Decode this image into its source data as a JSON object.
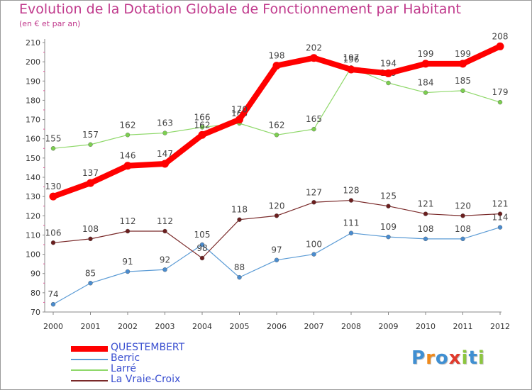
{
  "title": "Evolution de la Dotation Globale de Fonctionnement par Habitant",
  "subtitle": "(en € et par an)",
  "logo": {
    "text": "Proxiti",
    "letters": [
      {
        "ch": "P",
        "color": "#3f8fd2"
      },
      {
        "ch": "r",
        "color": "#f08a1c"
      },
      {
        "ch": "o",
        "color": "#3f8fd2"
      },
      {
        "ch": "x",
        "color": "#e03a2c"
      },
      {
        "ch": "i",
        "color": "#8cc63f"
      },
      {
        "ch": "t",
        "color": "#3f8fd2"
      },
      {
        "ch": "i",
        "color": "#8cc63f"
      }
    ]
  },
  "chart_data": {
    "type": "line",
    "x": [
      2000,
      2001,
      2002,
      2003,
      2004,
      2005,
      2006,
      2007,
      2008,
      2009,
      2010,
      2011,
      2012
    ],
    "ylim": [
      70,
      210
    ],
    "yticks": [
      70,
      80,
      90,
      100,
      110,
      120,
      130,
      140,
      150,
      160,
      170,
      180,
      190,
      200,
      210
    ],
    "grid": false,
    "legend": "bottom-left",
    "series": [
      {
        "name": "Berric",
        "color": "#5b9bd5",
        "marker": "#4a8ccf",
        "values": [
          74,
          85,
          91,
          92,
          105,
          88,
          97,
          100,
          111,
          109,
          108,
          108,
          114
        ],
        "width": 1.2
      },
      {
        "name": "La Vraie-Croix",
        "color": "#7a2a2a",
        "marker": "#6b1e1e",
        "values": [
          106,
          108,
          112,
          112,
          98,
          118,
          120,
          127,
          128,
          125,
          121,
          120,
          121
        ],
        "width": 1.2
      },
      {
        "name": "Larré",
        "color": "#8fd86a",
        "marker": "#7ccf4f",
        "values": [
          155,
          157,
          162,
          163,
          166,
          168,
          162,
          165,
          197,
          189,
          184,
          185,
          179
        ],
        "width": 1.2
      },
      {
        "name": "QUESTEMBERT",
        "color": "#ff0000",
        "marker": "#ff0000",
        "values": [
          130,
          137,
          146,
          147,
          162,
          170,
          198,
          202,
          196,
          194,
          199,
          199,
          208
        ],
        "width": 8
      }
    ],
    "legend_order": [
      "QUESTEMBERT",
      "Berric",
      "Larré",
      "La Vraie-Croix"
    ]
  }
}
